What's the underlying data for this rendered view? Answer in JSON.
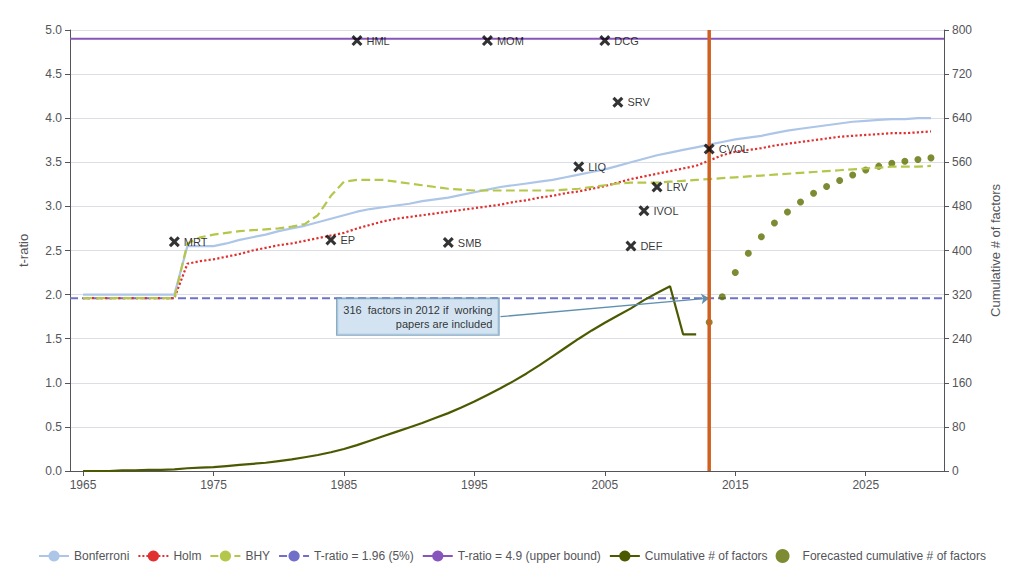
{
  "chart_data": {
    "type": "line",
    "ylabel": "t-ratio",
    "y2label": "Cumulative # of factors",
    "xlim": [
      1964,
      2031
    ],
    "xticks": [
      1965,
      1975,
      1985,
      1995,
      2005,
      2015,
      2025
    ],
    "ylim": [
      0.0,
      5.0
    ],
    "yticks": [
      {
        "value": 0.0,
        "label": "0.0"
      },
      0.5,
      {
        "value": 1.0,
        "label": "1.0"
      },
      1.5,
      {
        "value": 2.0,
        "label": "2.0"
      },
      2.5,
      {
        "value": 3.0,
        "label": "3.0"
      },
      3.5,
      {
        "value": 4.0,
        "label": "4.0"
      },
      4.5,
      {
        "value": 5.0,
        "label": "5.0"
      }
    ],
    "y2lim": [
      0,
      800
    ],
    "y2ticks": [
      0,
      80,
      160,
      240,
      320,
      400,
      480,
      560,
      640,
      720,
      800
    ],
    "grid": true,
    "legend": "bottom",
    "series": [
      {
        "name": "Bonferroni",
        "type": "line",
        "color": "#adc6e8",
        "line_style": "solid",
        "x": [
          1965,
          1966,
          1968,
          1970,
          1972,
          1973,
          1974,
          1975,
          1976,
          1977,
          1978,
          1979,
          1980,
          1981,
          1982,
          1983,
          1984,
          1985,
          1986,
          1987,
          1988,
          1989,
          1990,
          1991,
          1992,
          1993,
          1994,
          1995,
          1996,
          1997,
          1998,
          1999,
          2000,
          2001,
          2002,
          2003,
          2004,
          2005,
          2006,
          2007,
          2008,
          2009,
          2010,
          2011,
          2012,
          2013,
          2014,
          2015,
          2016,
          2017,
          2018,
          2019,
          2020,
          2021,
          2022,
          2023,
          2024,
          2025,
          2026,
          2027,
          2028,
          2029,
          2030
        ],
        "values": [
          2.0,
          2.0,
          2.0,
          2.0,
          2.0,
          2.55,
          2.55,
          2.55,
          2.58,
          2.62,
          2.65,
          2.68,
          2.72,
          2.75,
          2.78,
          2.82,
          2.86,
          2.9,
          2.94,
          2.97,
          2.99,
          3.01,
          3.03,
          3.06,
          3.08,
          3.1,
          3.13,
          3.16,
          3.19,
          3.22,
          3.24,
          3.26,
          3.28,
          3.3,
          3.33,
          3.36,
          3.39,
          3.42,
          3.46,
          3.5,
          3.54,
          3.58,
          3.61,
          3.64,
          3.67,
          3.7,
          3.73,
          3.76,
          3.78,
          3.8,
          3.83,
          3.86,
          3.88,
          3.9,
          3.92,
          3.94,
          3.96,
          3.97,
          3.98,
          3.99,
          3.99,
          4.0,
          4.0
        ]
      },
      {
        "name": "Holm",
        "type": "line",
        "color": "#e03030",
        "line_style": "dotted",
        "x": [
          1965,
          1966,
          1968,
          1970,
          1972,
          1973,
          1974,
          1975,
          1976,
          1977,
          1978,
          1979,
          1980,
          1981,
          1982,
          1983,
          1984,
          1985,
          1986,
          1987,
          1988,
          1989,
          1990,
          1991,
          1992,
          1993,
          1994,
          1995,
          1996,
          1997,
          1998,
          1999,
          2000,
          2001,
          2002,
          2003,
          2004,
          2005,
          2006,
          2007,
          2008,
          2009,
          2010,
          2011,
          2012,
          2013,
          2014,
          2015,
          2016,
          2017,
          2018,
          2019,
          2020,
          2021,
          2022,
          2023,
          2024,
          2025,
          2026,
          2027,
          2028,
          2029,
          2030
        ],
        "values": [
          1.96,
          1.96,
          1.96,
          1.96,
          1.96,
          2.35,
          2.38,
          2.4,
          2.43,
          2.46,
          2.5,
          2.53,
          2.56,
          2.58,
          2.61,
          2.64,
          2.67,
          2.7,
          2.75,
          2.79,
          2.83,
          2.86,
          2.88,
          2.9,
          2.92,
          2.94,
          2.96,
          2.98,
          3.0,
          3.02,
          3.05,
          3.07,
          3.1,
          3.12,
          3.15,
          3.17,
          3.2,
          3.23,
          3.27,
          3.31,
          3.34,
          3.37,
          3.4,
          3.43,
          3.46,
          3.52,
          3.58,
          3.62,
          3.64,
          3.66,
          3.69,
          3.71,
          3.73,
          3.75,
          3.77,
          3.79,
          3.8,
          3.81,
          3.82,
          3.83,
          3.83,
          3.84,
          3.85
        ]
      },
      {
        "name": "BHY",
        "type": "line",
        "color": "#b5c74a",
        "line_style": "dashed",
        "x": [
          1965,
          1966,
          1968,
          1970,
          1972,
          1973,
          1974,
          1975,
          1976,
          1977,
          1978,
          1979,
          1980,
          1981,
          1982,
          1983,
          1984,
          1985,
          1986,
          1987,
          1988,
          1989,
          1990,
          1991,
          1992,
          1993,
          1994,
          1995,
          1996,
          1997,
          1998,
          1999,
          2000,
          2001,
          2002,
          2003,
          2004,
          2005,
          2006,
          2007,
          2008,
          2009,
          2010,
          2011,
          2012,
          2013,
          2014,
          2015,
          2016,
          2017,
          2018,
          2019,
          2020,
          2021,
          2022,
          2023,
          2024,
          2025,
          2026,
          2027,
          2028,
          2029,
          2030
        ],
        "values": [
          1.96,
          1.96,
          1.96,
          1.96,
          1.96,
          2.58,
          2.65,
          2.68,
          2.7,
          2.72,
          2.73,
          2.74,
          2.75,
          2.77,
          2.8,
          2.9,
          3.12,
          3.28,
          3.3,
          3.3,
          3.3,
          3.28,
          3.26,
          3.24,
          3.22,
          3.2,
          3.19,
          3.18,
          3.18,
          3.18,
          3.18,
          3.18,
          3.18,
          3.18,
          3.19,
          3.2,
          3.22,
          3.24,
          3.26,
          3.27,
          3.27,
          3.27,
          3.28,
          3.29,
          3.3,
          3.31,
          3.32,
          3.33,
          3.34,
          3.35,
          3.36,
          3.37,
          3.38,
          3.39,
          3.4,
          3.41,
          3.42,
          3.43,
          3.44,
          3.45,
          3.45,
          3.45,
          3.46
        ]
      },
      {
        "name": "T-ratio = 1.96 (5%)",
        "type": "hline",
        "color": "#7070c8",
        "line_style": "dashed",
        "values": [
          1.96
        ]
      },
      {
        "name": "T-ratio = 4.9 (upper bound)",
        "type": "hline",
        "color": "#8855bb",
        "line_style": "solid",
        "values": [
          4.9
        ]
      },
      {
        "name": "Cumulative # of factors",
        "type": "line",
        "color": "#4b5900",
        "line_style": "solid",
        "axis": "y2",
        "x": [
          1965,
          1966,
          1967,
          1968,
          1969,
          1970,
          1971,
          1972,
          1973,
          1974,
          1975,
          1976,
          1977,
          1978,
          1979,
          1980,
          1981,
          1982,
          1983,
          1984,
          1985,
          1986,
          1987,
          1988,
          1989,
          1990,
          1991,
          1992,
          1993,
          1994,
          1995,
          1996,
          1997,
          1998,
          1999,
          2000,
          2001,
          2002,
          2003,
          2004,
          2005,
          2006,
          2007,
          2008,
          2009,
          2010,
          2011,
          2012
        ],
        "values": [
          0,
          0,
          0,
          1,
          1,
          2,
          2,
          3,
          5,
          6,
          7,
          9,
          11,
          13,
          15,
          18,
          21,
          25,
          29,
          34,
          40,
          47,
          55,
          63,
          71,
          79,
          87,
          96,
          105,
          115,
          126,
          138,
          150,
          163,
          177,
          192,
          208,
          224,
          240,
          255,
          269,
          282,
          295,
          310,
          323,
          335,
          248,
          248
        ]
      },
      {
        "name": "Forecasted cumulative # of factors",
        "type": "scatter",
        "color": "#5c6e00",
        "marker": "circle",
        "axis": "y2",
        "x": [
          2013,
          2014,
          2015,
          2016,
          2017,
          2018,
          2019,
          2020,
          2021,
          2022,
          2023,
          2024,
          2025,
          2026,
          2027,
          2028,
          2029,
          2030
        ],
        "values": [
          270,
          316,
          360,
          395,
          425,
          450,
          470,
          488,
          504,
          516,
          527,
          537,
          546,
          553,
          558,
          562,
          565,
          568
        ]
      }
    ],
    "vlines": [
      {
        "x": 2013,
        "color": "#d06020"
      }
    ],
    "markers": {
      "marker": "x",
      "color": "#000000",
      "points": [
        {
          "x": 1972,
          "y": 2.6,
          "label": "MRT"
        },
        {
          "x": 1984,
          "y": 2.62,
          "label": "EP"
        },
        {
          "x": 1993,
          "y": 2.59,
          "label": "SMB"
        },
        {
          "x": 1986,
          "y": 4.88,
          "label": "HML"
        },
        {
          "x": 1996,
          "y": 4.88,
          "label": "MOM"
        },
        {
          "x": 2005,
          "y": 4.88,
          "label": "DCG"
        },
        {
          "x": 2003,
          "y": 3.45,
          "label": "LIQ"
        },
        {
          "x": 2007,
          "y": 2.55,
          "label": "DEF"
        },
        {
          "x": 2006,
          "y": 4.18,
          "label": "SRV"
        },
        {
          "x": 2009,
          "y": 3.22,
          "label": "LRV"
        },
        {
          "x": 2008,
          "y": 2.95,
          "label": "IVOL"
        },
        {
          "x": 2013,
          "y": 3.65,
          "label": "CVOL"
        }
      ]
    },
    "annotations": [
      {
        "text": "316  factors in 2012 if  working\npapers are included",
        "x": 2013,
        "y": 1.96,
        "text_x": 1997,
        "text_y": 1.75,
        "color": "#6090b0",
        "background": "#c8dcee"
      }
    ]
  }
}
